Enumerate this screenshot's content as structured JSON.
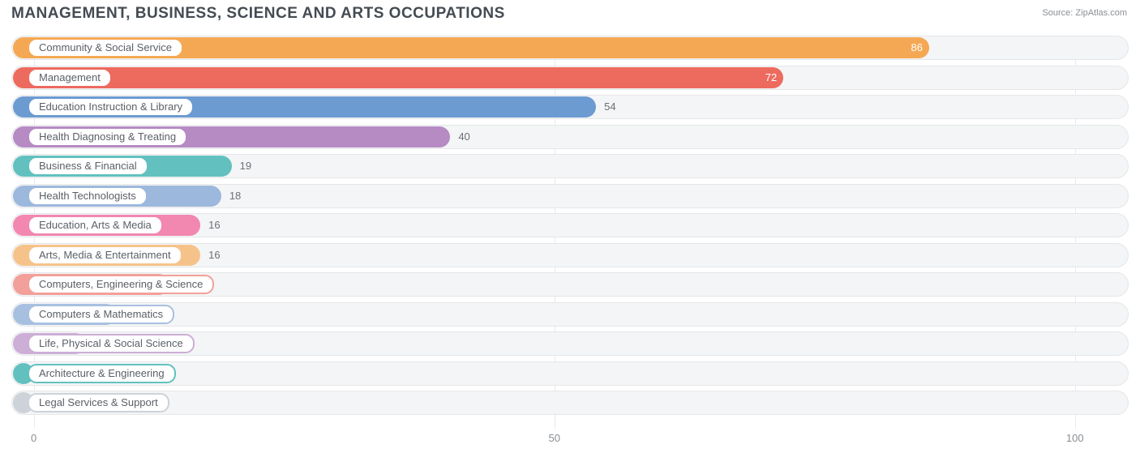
{
  "title": "MANAGEMENT, BUSINESS, SCIENCE AND ARTS OCCUPATIONS",
  "source_label": "Source:",
  "source_site": "ZipAtlas.com",
  "chart": {
    "type": "bar-horizontal",
    "background_color": "#ffffff",
    "track_bg": "#f4f5f6",
    "track_border": "#e4e6e8",
    "grid_color": "#e8eaec",
    "title_color": "#444b52",
    "title_fontsize": 19,
    "label_fontsize": 13,
    "value_color": "#6b7076",
    "x_axis": {
      "min": -2,
      "max": 105,
      "ticks": [
        0,
        50,
        100
      ]
    },
    "label_origin_value": -2,
    "bars": [
      {
        "label": "Community & Social Service",
        "value": 86,
        "color": "#f5a853",
        "value_placement": "inside"
      },
      {
        "label": "Management",
        "value": 72,
        "color": "#ed6a5e",
        "value_placement": "inside"
      },
      {
        "label": "Education Instruction & Library",
        "value": 54,
        "color": "#6c9bd1",
        "value_placement": "outside"
      },
      {
        "label": "Health Diagnosing & Treating",
        "value": 40,
        "color": "#b68bc4",
        "value_placement": "outside"
      },
      {
        "label": "Business & Financial",
        "value": 19,
        "color": "#62c1bf",
        "value_placement": "outside"
      },
      {
        "label": "Health Technologists",
        "value": 18,
        "color": "#9db8dd",
        "value_placement": "outside"
      },
      {
        "label": "Education, Arts & Media",
        "value": 16,
        "color": "#f287b0",
        "value_placement": "outside"
      },
      {
        "label": "Arts, Media & Entertainment",
        "value": 16,
        "color": "#f5c38a",
        "value_placement": "outside"
      },
      {
        "label": "Computers, Engineering & Science",
        "value": 13,
        "color": "#f2a099",
        "value_placement": "outside"
      },
      {
        "label": "Computers & Mathematics",
        "value": 8,
        "color": "#a8c0e0",
        "value_placement": "outside"
      },
      {
        "label": "Life, Physical & Social Science",
        "value": 5,
        "color": "#ccaed6",
        "value_placement": "outside"
      },
      {
        "label": "Architecture & Engineering",
        "value": 0,
        "color": "#62c1bf",
        "value_placement": "outside"
      },
      {
        "label": "Legal Services & Support",
        "value": 0,
        "color": "#cdd3d8",
        "value_placement": "outside"
      }
    ]
  }
}
